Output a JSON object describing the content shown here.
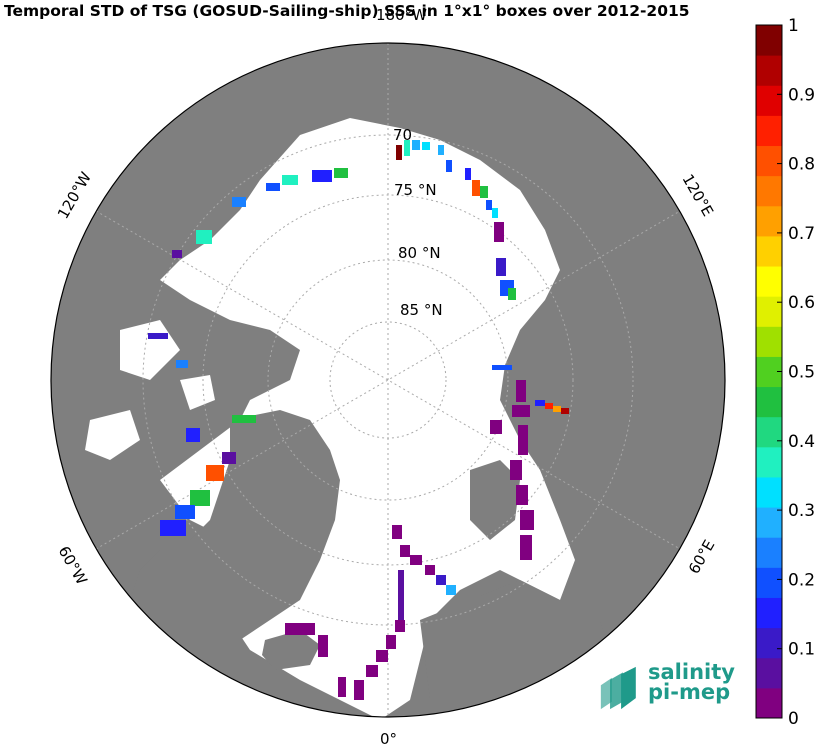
{
  "title": "Temporal STD of TSG (GOSUD-Sailing-ship) SSS in 1°x1° boxes over 2012-2015",
  "lat_labels": [
    "70",
    "75 °N",
    "80 °N",
    "85 °N"
  ],
  "lon_labels": [
    "180°W",
    "120°W",
    "60°W",
    "0°",
    "60°E",
    "120°E"
  ],
  "colorbar": {
    "ticks": [
      "1",
      "0.9",
      "0.8",
      "0.7",
      "0.6",
      "0.5",
      "0.4",
      "0.3",
      "0.2",
      "0.1",
      "0"
    ],
    "colors": [
      "#800080",
      "#5a0fa0",
      "#3a1ac8",
      "#2020ff",
      "#1050ff",
      "#1a80ff",
      "#20b0ff",
      "#00e0ff",
      "#20f0c0",
      "#20d880",
      "#20c040",
      "#50d020",
      "#a0e000",
      "#e0f000",
      "#ffff00",
      "#ffd000",
      "#ffa000",
      "#ff7800",
      "#ff5000",
      "#ff2000",
      "#e00000",
      "#b00000",
      "#800000"
    ]
  },
  "logo": {
    "line1": "salinity",
    "line2": "pi-mep"
  },
  "colors": {
    "land": "#7f7f7f",
    "ocean": "#ffffff",
    "ice": "#ffffff"
  }
}
